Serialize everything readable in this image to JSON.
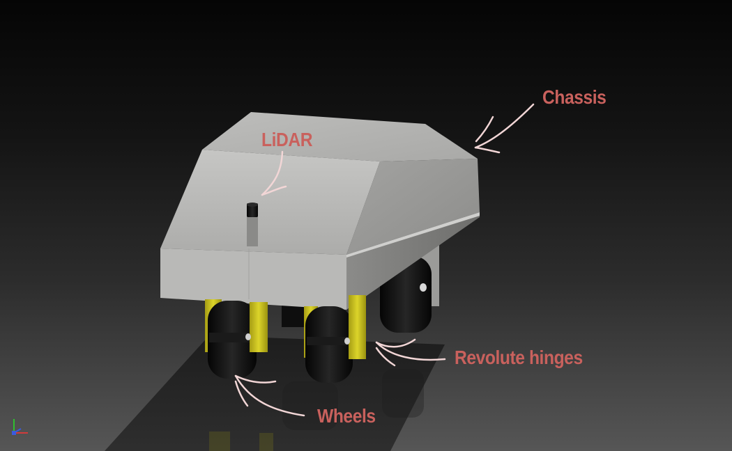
{
  "viewport": {
    "background_top": "#050505",
    "background_bottom": "#565656"
  },
  "annotations": {
    "lidar": "LiDAR",
    "chassis": "Chassis",
    "revolute_hinges": "Revolute hinges",
    "wheels": "Wheels",
    "color": "#c9615d",
    "arrow_color": "#f2d6d6"
  },
  "model": {
    "chassis_color": "#b4b4b2",
    "hinge_color": "#c9c21e",
    "wheel_color": "#111111",
    "sensor_color": "#0a0a0a"
  },
  "axis_triad": {
    "icon": "axis-triad-icon"
  }
}
